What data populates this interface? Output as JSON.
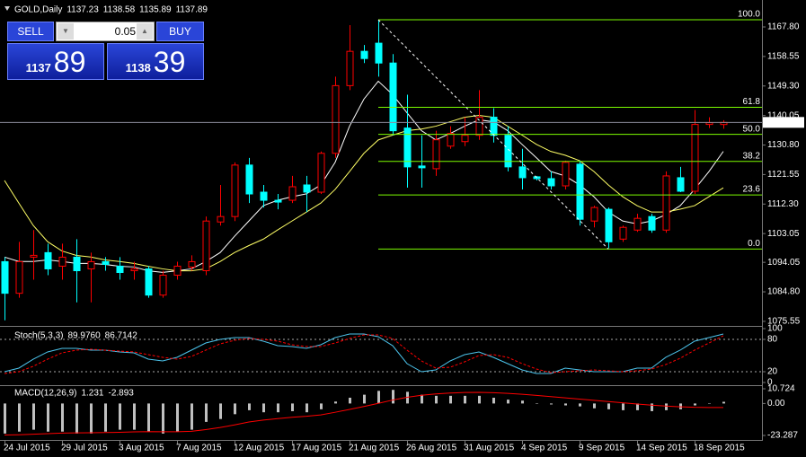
{
  "chart_data": [
    {
      "type": "candlestick",
      "title": "GOLD,Daily",
      "categories": [
        "24 Jul 2015",
        null,
        null,
        null,
        "29 Jul 2015",
        null,
        null,
        null,
        "3 Aug 2015",
        null,
        null,
        null,
        "7 Aug 2015",
        null,
        null,
        null,
        "12 Aug 2015",
        null,
        null,
        null,
        "17 Aug 2015",
        null,
        null,
        null,
        "21 Aug 2015",
        null,
        null,
        null,
        "26 Aug 2015",
        null,
        null,
        null,
        "31 Aug 2015",
        null,
        null,
        null,
        "4 Sep 2015",
        null,
        null,
        null,
        "9 Sep 2015",
        null,
        null,
        null,
        "14 Sep 2015",
        null,
        null,
        null,
        "18 Sep 2015",
        null,
        null
      ],
      "open": [
        1094.25,
        1084.35,
        1095.66,
        1097.08,
        1092.84,
        1095.66,
        1091.99,
        1094.25,
        1092.84,
        1091.42,
        1091.99,
        1083.78,
        1090.01,
        1092.55,
        1091.42,
        1106.69,
        1108.39,
        1124.52,
        1116.03,
        1113.49,
        1113.49,
        1118.29,
        1116.03,
        1128.2,
        1149.41,
        1160.16,
        1162.71,
        1156.49,
        1136.12,
        1124.23,
        1123.38,
        1130.46,
        1131.87,
        1133.85,
        1139.51,
        1133.85,
        1123.95,
        1120.84,
        1120.27,
        1118.01,
        1124.8,
        1106.98,
        1110.66,
        1101.32,
        1104.15,
        1108.39,
        1104.15,
        1120.56,
        1116.32,
        1137.25,
        1137.23
      ],
      "high": [
        1095.66,
        1100.47,
        1104.15,
        1099.91,
        1099.91,
        1101.32,
        1097.08,
        1095.66,
        1095.66,
        1094.25,
        1092.84,
        1091.42,
        1094.25,
        1096.23,
        1108.39,
        1118.29,
        1125.37,
        1126.78,
        1118.29,
        1115.47,
        1121.12,
        1121.12,
        1128.76,
        1152.24,
        1168.37,
        1162.14,
        1170.06,
        1159.31,
        1146.58,
        1133.85,
        1135.27,
        1136.68,
        1139.51,
        1148.0,
        1142.34,
        1136.68,
        1129.61,
        1121.12,
        1122.54,
        1125.93,
        1125.93,
        1111.79,
        1111.22,
        1105.56,
        1109.24,
        1109.24,
        1122.54,
        1123.95,
        1141.77,
        1139.51,
        1138.58
      ],
      "low": [
        1075.87,
        1082.94,
        1088.59,
        1090.01,
        1088.59,
        1081.52,
        1081.52,
        1091.42,
        1088.59,
        1088.59,
        1082.94,
        1082.94,
        1088.59,
        1091.42,
        1090.01,
        1105.56,
        1106.98,
        1112.64,
        1111.22,
        1110.66,
        1112.64,
        1109.81,
        1115.47,
        1126.78,
        1148.0,
        1156.49,
        1152.24,
        1133.85,
        1117.44,
        1117.44,
        1121.12,
        1129.61,
        1130.46,
        1132.44,
        1131.59,
        1122.54,
        1116.88,
        1119.71,
        1116.88,
        1116.88,
        1105.56,
        1105.0,
        1098.49,
        1100.47,
        1103.59,
        1103.3,
        1103.3,
        1116.03,
        1115.47,
        1136.12,
        1135.89
      ],
      "close": [
        1084.35,
        1094.25,
        1096.23,
        1091.99,
        1095.66,
        1091.42,
        1094.25,
        1093.4,
        1090.86,
        1091.99,
        1083.78,
        1090.01,
        1092.84,
        1094.25,
        1106.98,
        1108.39,
        1124.52,
        1115.47,
        1113.49,
        1112.92,
        1117.73,
        1116.03,
        1128.2,
        1149.41,
        1160.16,
        1157.9,
        1156.49,
        1135.27,
        1123.95,
        1123.67,
        1132.44,
        1134.42,
        1133.85,
        1139.51,
        1133.85,
        1123.95,
        1120.56,
        1120.27,
        1118.01,
        1125.37,
        1107.54,
        1111.22,
        1100.47,
        1105.0,
        1107.83,
        1104.15,
        1121.12,
        1116.32,
        1137.25,
        1137.81,
        1137.89
      ],
      "up_color": "#ff0000",
      "down_color": "#00ffff",
      "series": [
        {
          "color": "#ffffff",
          "values": [
            1095.7,
            1094.3,
            1094.3,
            1094.8,
            1094.3,
            1093.7,
            1093.7,
            1093.4,
            1092.8,
            1092.6,
            1091.4,
            1090.9,
            1091.4,
            1092.0,
            1094.3,
            1097.1,
            1102.2,
            1107.0,
            1111.8,
            1113.5,
            1114.6,
            1115.5,
            1118.3,
            1125.4,
            1136.7,
            1145.2,
            1150.8,
            1146.6,
            1140.9,
            1135.3,
            1132.4,
            1134.4,
            1136.7,
            1138.7,
            1138.1,
            1135.3,
            1131.0,
            1126.8,
            1122.5,
            1121.1,
            1118.3,
            1114.6,
            1109.8,
            1107.0,
            1106.1,
            1107.0,
            1109.0,
            1111.8,
            1116.9,
            1122.5,
            1128.8
          ]
        },
        {
          "color": "#ffff66",
          "values": [
            1119.7,
            1112.6,
            1105.6,
            1100.5,
            1097.6,
            1096.2,
            1095.7,
            1094.8,
            1094.3,
            1093.7,
            1092.8,
            1092.0,
            1091.4,
            1091.4,
            1092.0,
            1094.3,
            1097.1,
            1099.3,
            1101.3,
            1104.2,
            1107.0,
            1109.8,
            1112.6,
            1116.9,
            1122.5,
            1128.2,
            1132.4,
            1133.9,
            1135.3,
            1135.8,
            1136.7,
            1138.1,
            1139.5,
            1140.1,
            1139.5,
            1136.7,
            1133.9,
            1131.0,
            1128.8,
            1127.6,
            1125.9,
            1122.5,
            1118.3,
            1114.6,
            1111.8,
            1109.8,
            1109.8,
            1110.7,
            1111.8,
            1114.6,
            1117.4
          ]
        }
      ],
      "ylim": [
        1074.4,
        1175.4
      ],
      "yticks": [
        {
          "value": 1167.8,
          "label": "1167.80"
        },
        {
          "value": 1158.55,
          "label": "1158.55"
        },
        {
          "value": 1149.3,
          "label": "1149.30"
        },
        {
          "value": 1140.05,
          "label": "1140.05"
        },
        {
          "value": 1130.8,
          "label": "1130.80"
        },
        {
          "value": 1121.55,
          "label": "1121.55"
        },
        {
          "value": 1112.3,
          "label": "1112.30"
        },
        {
          "value": 1103.05,
          "label": "1103.05"
        },
        {
          "value": 1094.05,
          "label": "1094.05"
        },
        {
          "value": 1084.8,
          "label": "1084.80"
        },
        {
          "value": 1075.55,
          "label": "1075.55"
        }
      ],
      "fibonacci": [
        {
          "value": 100,
          "label": "100.0",
          "price": 1170.06
        },
        {
          "value": 61.8,
          "label": "61.8",
          "price": 1142.61
        },
        {
          "value": 50,
          "label": "50.0",
          "price": 1134.14
        },
        {
          "value": 38.2,
          "label": "38.2",
          "price": 1125.66
        },
        {
          "value": 23.6,
          "label": "23.6",
          "price": 1115.17
        },
        {
          "value": 0,
          "label": "0.0",
          "price": 1098.21
        }
      ],
      "fib_color": "#7cfc00",
      "last_price": 1137.89
    },
    {
      "type": "line",
      "title": "Stoch(5,3,3)",
      "readout": [
        {
          "value": 89.976,
          "label": "89.9760"
        },
        {
          "value": 86.7142,
          "label": "86.7142"
        }
      ],
      "series": [
        {
          "color": "#4cc4ec",
          "values": [
            20,
            26.7,
            43.3,
            56.7,
            63.3,
            63.3,
            60,
            60,
            56.7,
            55,
            43.3,
            40,
            46.7,
            60,
            73.3,
            80,
            83.3,
            83.3,
            76.7,
            68.3,
            66.7,
            63.3,
            70,
            83.3,
            90,
            90,
            85,
            68.3,
            35,
            20,
            23.3,
            40,
            51.7,
            56.7,
            46.7,
            35,
            23.3,
            16.7,
            16.7,
            26.7,
            23.3,
            20,
            20,
            20,
            26.7,
            26.7,
            46.7,
            60,
            76.7,
            83.3,
            89.976
          ]
        },
        {
          "color": "#ff0000",
          "dashed": true,
          "values": [
            16.7,
            20,
            30,
            43.3,
            55,
            60,
            61.7,
            60,
            58.3,
            56.7,
            51.7,
            46.7,
            43.3,
            48.3,
            60,
            71.7,
            78.3,
            81.7,
            80,
            76.7,
            70,
            66.7,
            66.7,
            73.3,
            81.7,
            88.3,
            88.3,
            81.7,
            60,
            40,
            26.7,
            28.3,
            38.3,
            50,
            51.7,
            46.7,
            35,
            25,
            18.3,
            20,
            21.7,
            23.3,
            21.7,
            20,
            21.7,
            25,
            33.3,
            45,
            60,
            73.3,
            86.7142
          ]
        }
      ],
      "ylim": [
        0,
        100
      ],
      "yticks": [
        100,
        80,
        20,
        0
      ],
      "levels": [
        80,
        20
      ]
    },
    {
      "type": "bar",
      "title": "MACD(12,26,9)",
      "color": "#c0c0c0",
      "values": [
        -21.9,
        -20.5,
        -19.1,
        -20.5,
        -20.5,
        -21.9,
        -21.9,
        -20.5,
        -19.1,
        -19.1,
        -20.5,
        -21.9,
        -20.5,
        -19.1,
        -13.4,
        -11.3,
        -7.8,
        -4.9,
        -6.4,
        -6.4,
        -5.6,
        -6.4,
        -4.2,
        1.4,
        4.2,
        6.4,
        9.2,
        9.9,
        8.5,
        6.4,
        5.6,
        5.6,
        5.6,
        5.6,
        4.2,
        2.8,
        2.1,
        -0.3,
        -0.7,
        -1.4,
        -2.1,
        -3.5,
        -4.2,
        -4.9,
        -4.9,
        -5.6,
        -4.9,
        -4.2,
        -1.4,
        -0.2,
        1.231
      ],
      "series": [
        {
          "color": "#ff0000",
          "values": [
            -23.0,
            -22.8,
            -22.4,
            -22.0,
            -21.6,
            -21.4,
            -21.3,
            -21.2,
            -21.0,
            -20.7,
            -20.5,
            -20.6,
            -20.6,
            -20.3,
            -19.0,
            -17.5,
            -15.6,
            -13.5,
            -12.1,
            -11.0,
            -10.0,
            -9.3,
            -8.3,
            -6.4,
            -4.3,
            -2.2,
            0.1,
            2.5,
            4.5,
            6,
            7,
            7.6,
            8,
            8.1,
            7.9,
            7.4,
            6.7,
            5.9,
            5,
            4.1,
            3.2,
            2.3,
            1.4,
            0.5,
            -0.4,
            -1.2,
            -1.9,
            -2.4,
            -2.8,
            -2.9,
            -2.893
          ]
        }
      ],
      "ylim": [
        -23.287,
        10.724
      ],
      "yticks": [
        10.724,
        {
          "value": 0,
          "label": "0.00"
        },
        -23.287
      ]
    }
  ],
  "trade_panel": {
    "sell": "SELL",
    "buy": "BUY",
    "lot": 0.05,
    "sell_small": "1137",
    "sell_big": "89",
    "buy_small": "1138",
    "buy_big": "39"
  }
}
